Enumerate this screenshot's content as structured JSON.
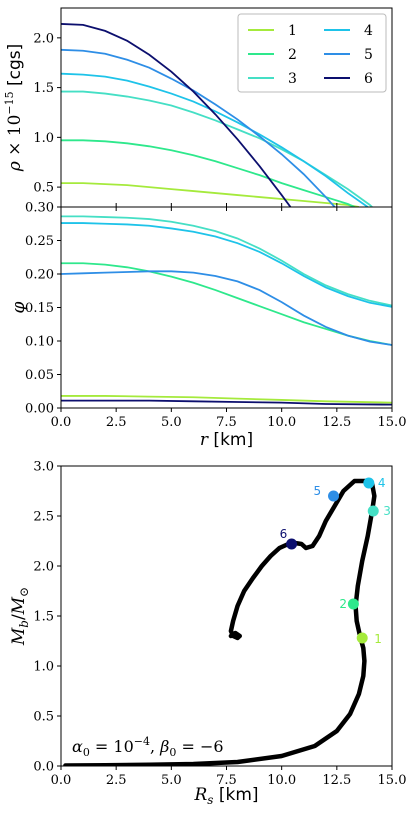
{
  "series_colors": {
    "1": "#a5ea3c",
    "2": "#2ee88c",
    "3": "#45dfc5",
    "4": "#1ec3e9",
    "5": "#2e8ee6",
    "6": "#0c0f6e"
  },
  "chart_data": [
    {
      "id": "density",
      "type": "line",
      "xlim": [
        0,
        15
      ],
      "ylim": [
        0.3,
        2.3
      ],
      "ylabel": "ρ × 10^{-15} [cgs]",
      "yticks": [
        "0.30",
        "0.5",
        "1.0",
        "1.5",
        "2.0"
      ],
      "ytick_values": [
        0.3,
        0.5,
        1.0,
        1.5,
        2.0
      ],
      "legend": {
        "placement": "top-right",
        "columns": 2,
        "entries": [
          "1",
          "2",
          "3",
          "4",
          "5",
          "6"
        ]
      },
      "series": [
        {
          "name": "1",
          "x": [
            0,
            1,
            2,
            3,
            4,
            5,
            6,
            7,
            8,
            9,
            10,
            11,
            12,
            13,
            13.5
          ],
          "values": [
            0.54,
            0.54,
            0.53,
            0.52,
            0.5,
            0.48,
            0.46,
            0.44,
            0.42,
            0.4,
            0.38,
            0.36,
            0.34,
            0.32,
            0.3
          ]
        },
        {
          "name": "2",
          "x": [
            0,
            1,
            2,
            3,
            4,
            5,
            6,
            7,
            8,
            9,
            10,
            11,
            12,
            13,
            13.3
          ],
          "values": [
            0.97,
            0.97,
            0.96,
            0.94,
            0.91,
            0.87,
            0.82,
            0.76,
            0.69,
            0.62,
            0.54,
            0.47,
            0.4,
            0.33,
            0.3
          ]
        },
        {
          "name": "3",
          "x": [
            0,
            1,
            2,
            3,
            4,
            5,
            6,
            7,
            8,
            9,
            10,
            11,
            12,
            13,
            14,
            14.1
          ],
          "values": [
            1.46,
            1.46,
            1.44,
            1.41,
            1.37,
            1.32,
            1.25,
            1.17,
            1.08,
            0.99,
            0.88,
            0.76,
            0.62,
            0.48,
            0.32,
            0.3
          ]
        },
        {
          "name": "4",
          "x": [
            0,
            1,
            2,
            3,
            4,
            5,
            6,
            7,
            8,
            9,
            10,
            11,
            12,
            13,
            13.9
          ],
          "values": [
            1.64,
            1.63,
            1.61,
            1.57,
            1.51,
            1.44,
            1.36,
            1.26,
            1.15,
            1.03,
            0.9,
            0.76,
            0.61,
            0.44,
            0.3
          ]
        },
        {
          "name": "5",
          "x": [
            0,
            1,
            2,
            3,
            4,
            5,
            6,
            7,
            8,
            9,
            10,
            11,
            12,
            12.4
          ],
          "values": [
            1.88,
            1.87,
            1.84,
            1.78,
            1.7,
            1.59,
            1.47,
            1.33,
            1.18,
            1.01,
            0.83,
            0.63,
            0.4,
            0.3
          ]
        },
        {
          "name": "6",
          "x": [
            0,
            1,
            2,
            3,
            4,
            5,
            6,
            7,
            8,
            9,
            10,
            10.4
          ],
          "values": [
            2.14,
            2.13,
            2.07,
            1.97,
            1.83,
            1.66,
            1.46,
            1.23,
            0.98,
            0.71,
            0.42,
            0.3
          ]
        }
      ]
    },
    {
      "id": "scalar-field",
      "type": "line",
      "xlim": [
        0,
        15
      ],
      "ylim": [
        0.0,
        0.3
      ],
      "xlabel": "r [km]",
      "ylabel": "φ",
      "xticks": [
        "0.0",
        "2.5",
        "5.0",
        "7.5",
        "10.0",
        "12.5",
        "15.0"
      ],
      "xtick_values": [
        0,
        2.5,
        5,
        7.5,
        10,
        12.5,
        15
      ],
      "yticks": [
        "0.00",
        "0.05",
        "0.10",
        "0.15",
        "0.20",
        "0.25"
      ],
      "ytick_values": [
        0,
        0.05,
        0.1,
        0.15,
        0.2,
        0.25
      ],
      "series": [
        {
          "name": "1",
          "x": [
            0,
            2,
            4,
            6,
            8,
            10,
            12,
            15
          ],
          "values": [
            0.018,
            0.018,
            0.017,
            0.016,
            0.014,
            0.012,
            0.01,
            0.008
          ]
        },
        {
          "name": "2",
          "x": [
            0,
            1,
            2,
            3,
            4,
            5,
            6,
            7,
            8,
            9,
            10,
            11,
            12,
            13,
            14,
            15
          ],
          "values": [
            0.216,
            0.216,
            0.214,
            0.21,
            0.204,
            0.196,
            0.187,
            0.176,
            0.164,
            0.152,
            0.14,
            0.128,
            0.118,
            0.108,
            0.1,
            0.094
          ]
        },
        {
          "name": "3",
          "x": [
            0,
            1,
            2,
            3,
            4,
            5,
            6,
            7,
            8,
            9,
            10,
            11,
            12,
            13,
            14,
            15
          ],
          "values": [
            0.286,
            0.286,
            0.285,
            0.284,
            0.282,
            0.278,
            0.272,
            0.264,
            0.253,
            0.238,
            0.22,
            0.2,
            0.183,
            0.17,
            0.16,
            0.153
          ]
        },
        {
          "name": "4",
          "x": [
            0,
            1,
            2,
            3,
            4,
            5,
            6,
            7,
            8,
            9,
            10,
            11,
            12,
            13,
            14,
            15
          ],
          "values": [
            0.276,
            0.276,
            0.275,
            0.274,
            0.272,
            0.268,
            0.263,
            0.256,
            0.246,
            0.233,
            0.216,
            0.197,
            0.18,
            0.167,
            0.157,
            0.151
          ]
        },
        {
          "name": "5",
          "x": [
            0,
            1,
            2,
            3,
            4,
            5,
            6,
            7,
            8,
            9,
            10,
            11,
            12,
            13,
            14,
            15
          ],
          "values": [
            0.2,
            0.201,
            0.202,
            0.203,
            0.204,
            0.204,
            0.202,
            0.197,
            0.189,
            0.176,
            0.158,
            0.138,
            0.121,
            0.108,
            0.099,
            0.094
          ]
        },
        {
          "name": "6",
          "x": [
            0,
            2,
            4,
            6,
            8,
            10,
            12,
            15
          ],
          "values": [
            0.011,
            0.011,
            0.011,
            0.01,
            0.009,
            0.008,
            0.006,
            0.005
          ]
        }
      ]
    },
    {
      "id": "mass-radius",
      "type": "scatter",
      "xlim": [
        0,
        15
      ],
      "ylim": [
        0,
        3
      ],
      "xlabel": "R_s [km]",
      "ylabel": "M_b/M_⊙",
      "xticks": [
        "0.0",
        "2.5",
        "5.0",
        "7.5",
        "10.0",
        "12.5",
        "15.0"
      ],
      "xtick_values": [
        0,
        2.5,
        5,
        7.5,
        10,
        12.5,
        15
      ],
      "yticks": [
        "0.0",
        "0.5",
        "1.0",
        "1.5",
        "2.0",
        "2.5",
        "3.0"
      ],
      "ytick_values": [
        0,
        0.5,
        1.0,
        1.5,
        2.0,
        2.5,
        3.0
      ],
      "annotation": "α₀ = 10⁻⁴,  β₀ = −6",
      "curve": {
        "x": [
          0.2,
          2,
          4,
          6,
          8,
          10,
          11.5,
          12.5,
          13.1,
          13.5,
          13.7,
          13.75,
          13.7,
          13.55,
          13.4,
          13.35,
          13.45,
          13.65,
          13.9,
          14.1,
          14.2,
          14.1,
          13.8,
          13.3,
          12.8,
          12.4,
          12.0,
          11.7,
          11.4,
          11.1,
          10.9,
          10.6,
          10.3,
          9.9,
          9.5,
          9.1,
          8.7,
          8.3,
          8.0,
          7.8,
          7.7,
          7.8,
          8.0,
          8.1,
          7.9,
          7.7
        ],
        "values": [
          0.005,
          0.008,
          0.012,
          0.02,
          0.04,
          0.1,
          0.2,
          0.35,
          0.52,
          0.72,
          0.9,
          1.05,
          1.18,
          1.3,
          1.45,
          1.6,
          1.8,
          2.05,
          2.3,
          2.55,
          2.7,
          2.82,
          2.85,
          2.85,
          2.75,
          2.6,
          2.45,
          2.3,
          2.2,
          2.18,
          2.22,
          2.23,
          2.22,
          2.18,
          2.1,
          2.0,
          1.88,
          1.75,
          1.6,
          1.45,
          1.35,
          1.3,
          1.28,
          1.3,
          1.33,
          1.3
        ]
      },
      "points": [
        {
          "label": "1",
          "x": 13.65,
          "y": 1.28
        },
        {
          "label": "2",
          "x": 13.25,
          "y": 1.62
        },
        {
          "label": "3",
          "x": 14.15,
          "y": 2.55
        },
        {
          "label": "4",
          "x": 13.95,
          "y": 2.83
        },
        {
          "label": "5",
          "x": 12.35,
          "y": 2.7
        },
        {
          "label": "6",
          "x": 10.45,
          "y": 2.22
        }
      ]
    }
  ]
}
